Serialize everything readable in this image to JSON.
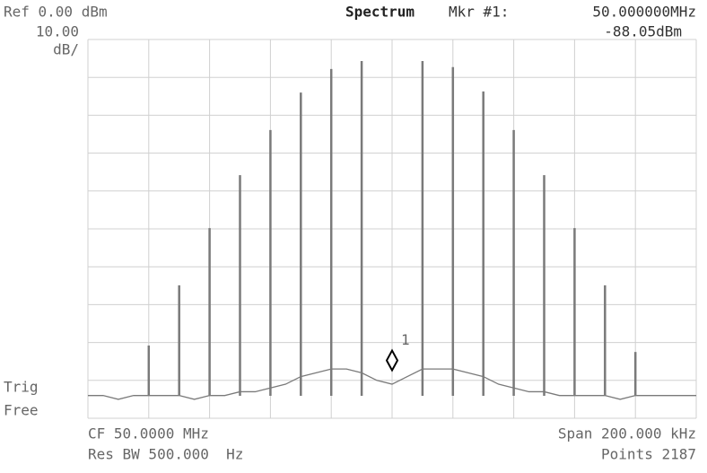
{
  "chart_data": {
    "type": "spectrum",
    "ref_label": "Ref 0.00 dBm",
    "title": "Spectrum",
    "marker_header": "Mkr #1:",
    "marker_freq": "50.000000MHz",
    "marker_level": "-88.05dBm",
    "scale_value": "10.00",
    "scale_unit": "dB/",
    "trig_line1": "Trig",
    "trig_line2": "Free",
    "center_label": "CF 50.0000 MHz",
    "span_label": "Span 200.000 kHz",
    "rbw_label": "Res BW 500.000  Hz",
    "points_label": "Points 2187",
    "xlim": [
      49.9,
      50.1
    ],
    "ylim": [
      -100,
      0
    ],
    "xticks": [
      49.9,
      49.92,
      49.94,
      49.96,
      49.98,
      50.0,
      50.02,
      50.04,
      50.06,
      50.08,
      50.1
    ],
    "yticks": [
      0,
      -10,
      -20,
      -30,
      -40,
      -50,
      -60,
      -70,
      -80,
      -90,
      -100
    ],
    "grid": true,
    "color": "#7a7a7a",
    "floor": {
      "x": [
        49.9,
        49.905,
        49.91,
        49.915,
        49.92,
        49.925,
        49.93,
        49.935,
        49.94,
        49.945,
        49.95,
        49.955,
        49.96,
        49.965,
        49.97,
        49.975,
        49.98,
        49.985,
        49.99,
        49.995,
        50.0,
        50.005,
        50.01,
        50.015,
        50.02,
        50.025,
        50.03,
        50.035,
        50.04,
        50.045,
        50.05,
        50.055,
        50.06,
        50.065,
        50.07,
        50.075,
        50.08,
        50.085,
        50.09,
        50.095,
        50.1
      ],
      "values": [
        -94,
        -94,
        -95,
        -94,
        -94,
        -94,
        -94,
        -95,
        -94,
        -94,
        -93,
        -93,
        -92,
        -91,
        -89,
        -88,
        -87,
        -87,
        -88,
        -90,
        -91,
        -89,
        -87,
        -87,
        -87,
        -88,
        -89,
        -91,
        -92,
        -93,
        -93,
        -94,
        -94,
        -94,
        -94,
        -95,
        -94,
        -94,
        -94,
        -94,
        -94
      ]
    },
    "peaks": {
      "x": [
        49.92,
        49.93,
        49.94,
        49.95,
        49.96,
        49.97,
        49.98,
        49.99,
        50.01,
        50.02,
        50.03,
        50.04,
        50.05,
        50.06,
        50.07,
        50.08
      ],
      "values": [
        -80.8,
        -64.9,
        -49.8,
        -35.8,
        -23.9,
        -14,
        -7.8,
        -5.7,
        -5.7,
        -7.3,
        -13.7,
        -23.9,
        -35.8,
        -49.8,
        -64.9,
        -82.5
      ]
    },
    "marker": {
      "label": "1",
      "x": 50.0,
      "value": -88.05
    }
  }
}
